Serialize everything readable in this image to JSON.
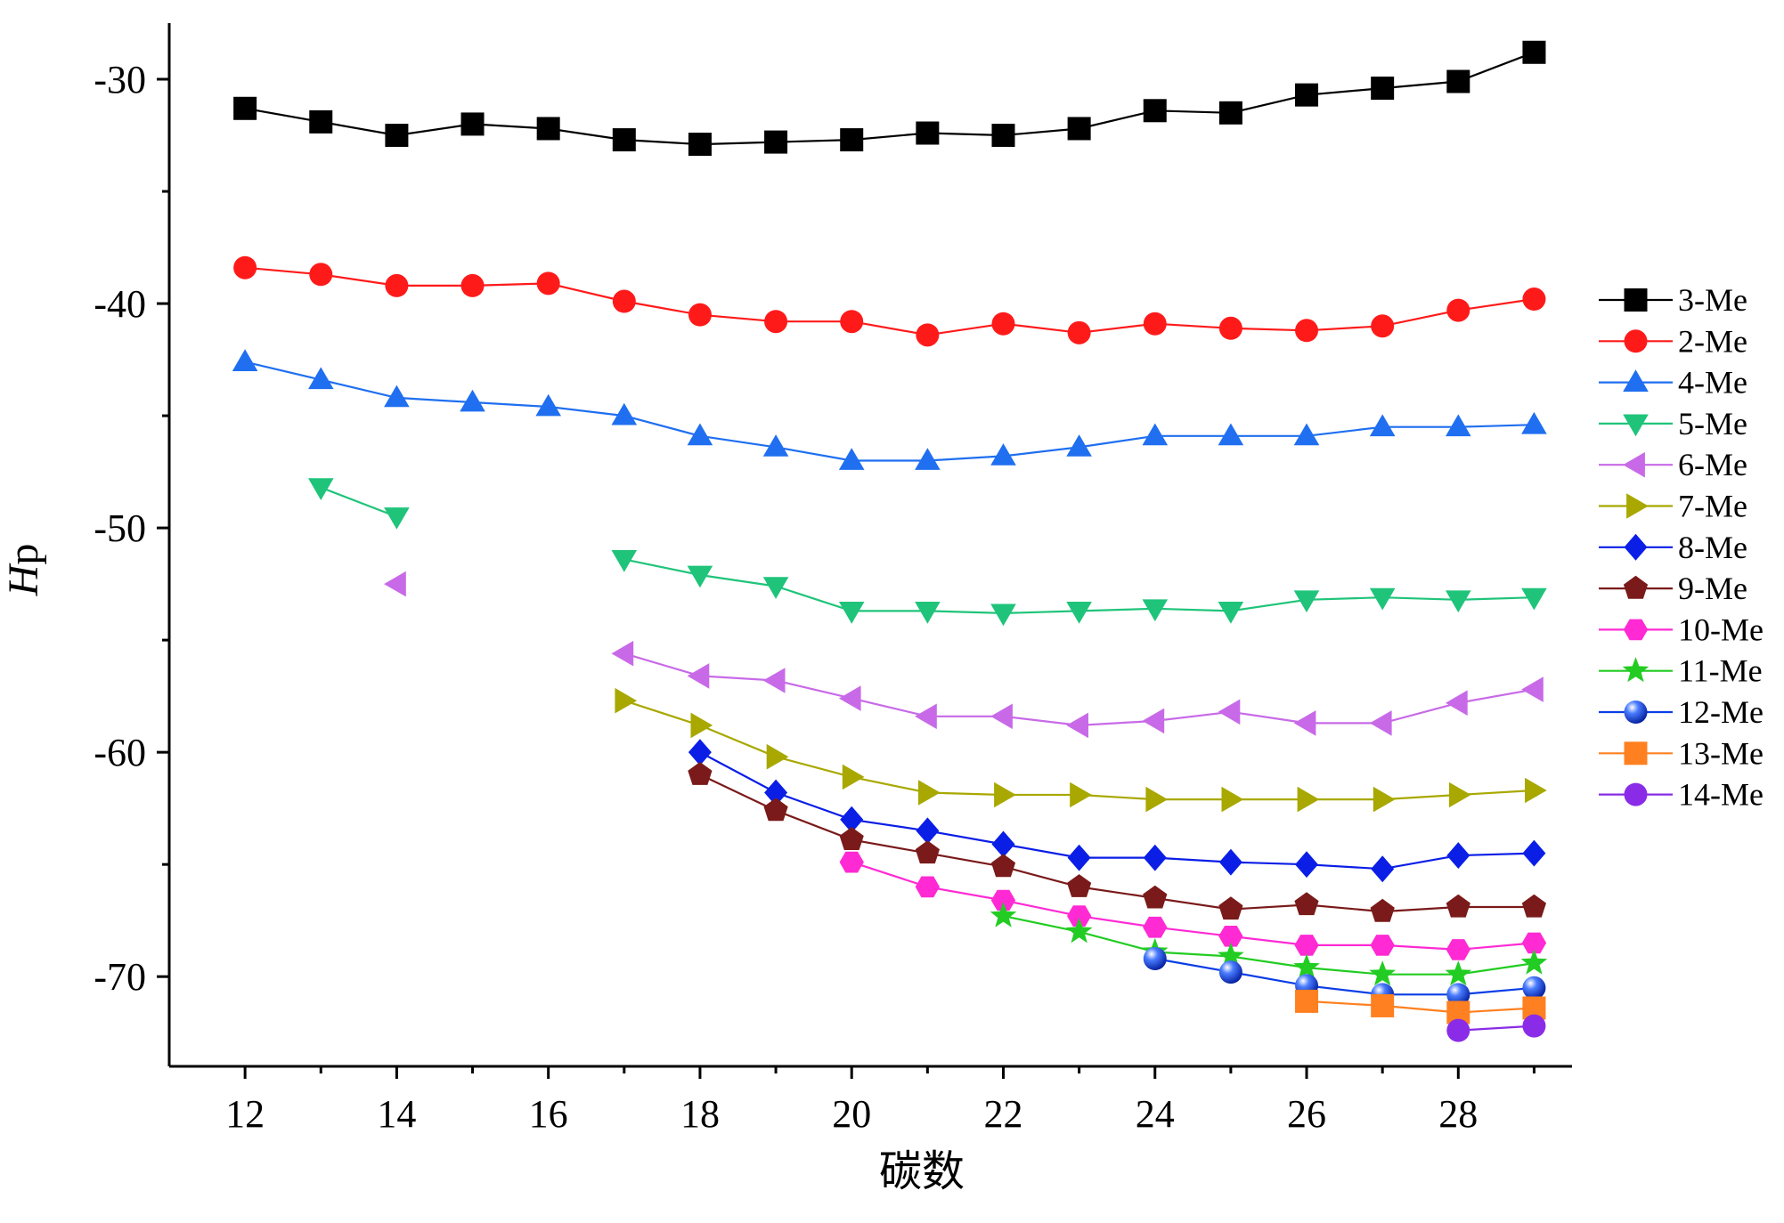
{
  "chart_data": {
    "type": "line",
    "xlabel": "碳数",
    "ylabel_italic": "H",
    "ylabel_rest": "p",
    "xlim": [
      11,
      29.5
    ],
    "ylim": [
      -74,
      -27.5
    ],
    "x_ticks": [
      12,
      14,
      16,
      18,
      20,
      22,
      24,
      26,
      28
    ],
    "x_minor_ticks": [
      13,
      15,
      17,
      19,
      21,
      23,
      25,
      27,
      29
    ],
    "y_ticks": [
      -70,
      -60,
      -50,
      -40,
      -30
    ],
    "y_minor_ticks": [
      -65,
      -55,
      -45,
      -35
    ],
    "legend_position": "right",
    "grid": false,
    "series": [
      {
        "name": "3-Me",
        "color": "#000000",
        "marker": "square",
        "x": [
          12,
          13,
          14,
          15,
          16,
          17,
          18,
          19,
          20,
          21,
          22,
          23,
          24,
          25,
          26,
          27,
          28,
          29
        ],
        "y": [
          -31.3,
          -31.9,
          -32.5,
          -32.0,
          -32.2,
          -32.7,
          -32.9,
          -32.8,
          -32.7,
          -32.4,
          -32.5,
          -32.2,
          -31.4,
          -31.5,
          -30.7,
          -30.4,
          -30.1,
          -28.8
        ]
      },
      {
        "name": "2-Me",
        "color": "#ff1a1a",
        "marker": "circle",
        "x": [
          12,
          13,
          14,
          15,
          16,
          17,
          18,
          19,
          20,
          21,
          22,
          23,
          24,
          25,
          26,
          27,
          28,
          29
        ],
        "y": [
          -38.4,
          -38.7,
          -39.2,
          -39.2,
          -39.1,
          -39.9,
          -40.5,
          -40.8,
          -40.8,
          -41.4,
          -40.9,
          -41.3,
          -40.9,
          -41.1,
          -41.2,
          -41.0,
          -40.3,
          -39.8
        ]
      },
      {
        "name": "4-Me",
        "color": "#1f6ff0",
        "marker": "triangle-up",
        "x": [
          12,
          13,
          14,
          15,
          16,
          17,
          18,
          19,
          20,
          21,
          22,
          23,
          24,
          25,
          26,
          27,
          28,
          29
        ],
        "y": [
          -42.6,
          -43.4,
          -44.2,
          -44.4,
          -44.6,
          -45.0,
          -45.9,
          -46.4,
          -47.0,
          -47.0,
          -46.8,
          -46.4,
          -45.9,
          -45.9,
          -45.9,
          -45.5,
          -45.5,
          -45.4
        ]
      },
      {
        "name": "5-Me",
        "color": "#1fc47a",
        "marker": "triangle-down",
        "x": [
          13,
          14
        ],
        "y": [
          -48.2,
          -49.5
        ]
      },
      {
        "name": "5-Me",
        "color": "#1fc47a",
        "marker": "triangle-down",
        "x": [
          17,
          18,
          19,
          20,
          21,
          22,
          23,
          24,
          25,
          26,
          27,
          28,
          29
        ],
        "y": [
          -51.4,
          -52.1,
          -52.6,
          -53.7,
          -53.7,
          -53.8,
          -53.7,
          -53.6,
          -53.7,
          -53.2,
          -53.1,
          -53.2,
          -53.1
        ]
      },
      {
        "name": "6-Me",
        "color": "#c86ae8",
        "marker": "triangle-left",
        "x": [
          14
        ],
        "y": [
          -52.5
        ]
      },
      {
        "name": "6-Me",
        "color": "#c86ae8",
        "marker": "triangle-left",
        "x": [
          17,
          18,
          19,
          20,
          21,
          22,
          23,
          24,
          25,
          26,
          27,
          28,
          29
        ],
        "y": [
          -55.6,
          -56.6,
          -56.8,
          -57.6,
          -58.4,
          -58.4,
          -58.8,
          -58.6,
          -58.2,
          -58.7,
          -58.7,
          -57.8,
          -57.2
        ]
      },
      {
        "name": "7-Me",
        "color": "#a8a800",
        "marker": "triangle-right",
        "x": [
          17,
          18,
          19,
          20,
          21,
          22,
          23,
          24,
          25,
          26,
          27,
          28,
          29
        ],
        "y": [
          -57.7,
          -58.8,
          -60.2,
          -61.1,
          -61.8,
          -61.9,
          -61.9,
          -62.1,
          -62.1,
          -62.1,
          -62.1,
          -61.9,
          -61.7
        ]
      },
      {
        "name": "8-Me",
        "color": "#0a1ee6",
        "marker": "diamond",
        "x": [
          18,
          19,
          20,
          21,
          22,
          23,
          24,
          25,
          26,
          27,
          28,
          29
        ],
        "y": [
          -60.0,
          -61.8,
          -63.0,
          -63.5,
          -64.1,
          -64.7,
          -64.7,
          -64.9,
          -65.0,
          -65.2,
          -64.6,
          -64.5
        ]
      },
      {
        "name": "9-Me",
        "color": "#7a1a1a",
        "marker": "pentagon",
        "x": [
          18,
          19,
          20,
          21,
          22,
          23,
          24,
          25,
          26,
          27,
          28,
          29
        ],
        "y": [
          -61.0,
          -62.6,
          -63.9,
          -64.5,
          -65.1,
          -66.0,
          -66.5,
          -67.0,
          -66.8,
          -67.1,
          -66.9,
          -66.9
        ]
      },
      {
        "name": "10-Me",
        "color": "#ff2ad4",
        "marker": "hexagon",
        "x": [
          20,
          21,
          22,
          23,
          24,
          25,
          26,
          27,
          28,
          29
        ],
        "y": [
          -64.9,
          -66.0,
          -66.6,
          -67.3,
          -67.8,
          -68.2,
          -68.6,
          -68.6,
          -68.8,
          -68.5
        ]
      },
      {
        "name": "11-Me",
        "color": "#22cc22",
        "marker": "star",
        "x": [
          22,
          23,
          24,
          25,
          26,
          27,
          28,
          29
        ],
        "y": [
          -67.3,
          -68.0,
          -68.9,
          -69.1,
          -69.6,
          -69.9,
          -69.9,
          -69.4
        ]
      },
      {
        "name": "12-Me",
        "color": "#0a3de6",
        "marker": "sphere",
        "x": [
          24,
          25,
          26,
          27,
          28,
          29
        ],
        "y": [
          -69.2,
          -69.8,
          -70.4,
          -70.8,
          -70.8,
          -70.5
        ]
      },
      {
        "name": "13-Me",
        "color": "#ff8020",
        "marker": "square",
        "x": [
          26,
          27,
          28,
          29
        ],
        "y": [
          -71.1,
          -71.3,
          -71.6,
          -71.4
        ]
      },
      {
        "name": "14-Me",
        "color": "#8a2be8",
        "marker": "circle",
        "x": [
          28,
          29
        ],
        "y": [
          -72.4,
          -72.2
        ]
      }
    ],
    "legend": [
      {
        "name": "3-Me",
        "color": "#000000",
        "marker": "square"
      },
      {
        "name": "2-Me",
        "color": "#ff1a1a",
        "marker": "circle"
      },
      {
        "name": "4-Me",
        "color": "#1f6ff0",
        "marker": "triangle-up"
      },
      {
        "name": "5-Me",
        "color": "#1fc47a",
        "marker": "triangle-down"
      },
      {
        "name": "6-Me",
        "color": "#c86ae8",
        "marker": "triangle-left"
      },
      {
        "name": "7-Me",
        "color": "#a8a800",
        "marker": "triangle-right"
      },
      {
        "name": "8-Me",
        "color": "#0a1ee6",
        "marker": "diamond"
      },
      {
        "name": "9-Me",
        "color": "#7a1a1a",
        "marker": "pentagon"
      },
      {
        "name": "10-Me",
        "color": "#ff2ad4",
        "marker": "hexagon"
      },
      {
        "name": "11-Me",
        "color": "#22cc22",
        "marker": "star"
      },
      {
        "name": "12-Me",
        "color": "#0a3de6",
        "marker": "sphere"
      },
      {
        "name": "13-Me",
        "color": "#ff8020",
        "marker": "square"
      },
      {
        "name": "14-Me",
        "color": "#8a2be8",
        "marker": "circle"
      }
    ]
  }
}
